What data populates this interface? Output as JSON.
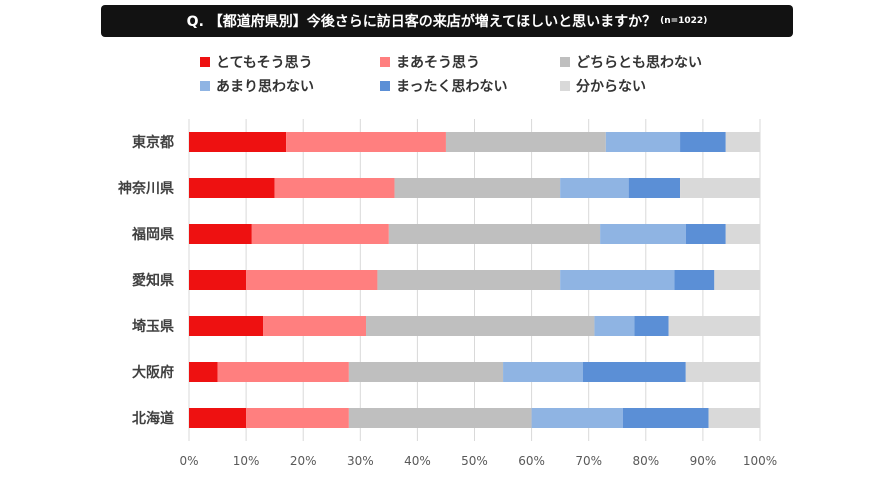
{
  "title": {
    "text": "Q. 【都道府県別】今後さらに訪日客の来店が増えてほしいと思いますか？",
    "note": "(n=1022)"
  },
  "colors": [
    "#ee1111",
    "#ff7f7f",
    "#bfbfbf",
    "#8fb4e3",
    "#5b8fd6",
    "#d9d9d9"
  ],
  "chart_data": {
    "type": "bar",
    "orientation": "horizontal",
    "stacked": "percent",
    "categories": [
      "東京都",
      "神奈川県",
      "福岡県",
      "愛知県",
      "埼玉県",
      "大阪府",
      "北海道"
    ],
    "series": [
      {
        "name": "とてもそう思う",
        "values": [
          17,
          15,
          11,
          10,
          13,
          5,
          10
        ]
      },
      {
        "name": "まあそう思う",
        "values": [
          28,
          21,
          24,
          23,
          18,
          23,
          18
        ]
      },
      {
        "name": "どちらとも思わない",
        "values": [
          28,
          29,
          37,
          32,
          40,
          27,
          32
        ]
      },
      {
        "name": "あまり思わない",
        "values": [
          13,
          12,
          15,
          20,
          7,
          14,
          16
        ]
      },
      {
        "name": "まったく思わない",
        "values": [
          8,
          9,
          7,
          7,
          6,
          18,
          15
        ]
      },
      {
        "name": "分からない",
        "values": [
          6,
          14,
          6,
          8,
          16,
          13,
          9
        ]
      }
    ],
    "xlim": [
      0,
      100
    ],
    "x_ticks": [
      "0%",
      "10%",
      "20%",
      "30%",
      "40%",
      "50%",
      "60%",
      "70%",
      "80%",
      "90%",
      "100%"
    ],
    "grid": "vertical",
    "legend_position": "top"
  }
}
